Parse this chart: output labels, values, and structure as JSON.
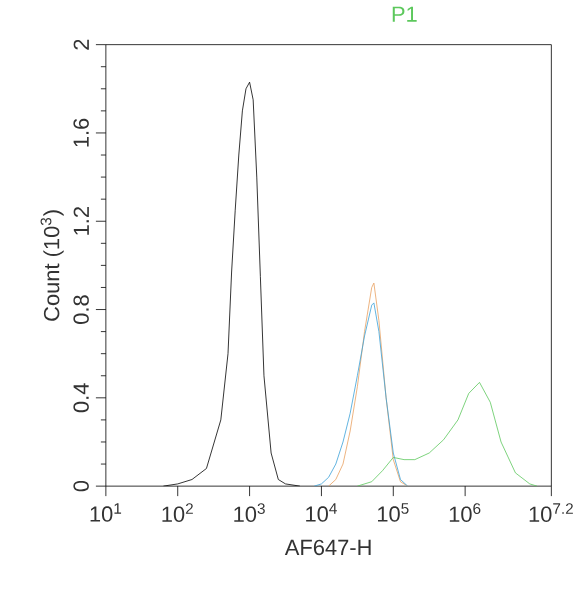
{
  "chart_data": {
    "type": "line",
    "title": "P1",
    "xlabel": "AF647-H",
    "ylabel": "Count (10$^{3}$)",
    "log": "x",
    "grid": false,
    "marker": "none",
    "line_style": "solid",
    "xlim": [
      10,
      15848932
    ],
    "ylim": [
      0,
      2
    ],
    "xticks": [
      {
        "value": 10,
        "label": "10$^{1}$"
      },
      {
        "value": 100,
        "label": "10$^{2}$"
      },
      {
        "value": 1000,
        "label": "10$^{3}$"
      },
      {
        "value": 10000,
        "label": "10$^{4}$"
      },
      {
        "value": 100000,
        "label": "10$^{5}$"
      },
      {
        "value": 1000000,
        "label": "10$^{6}$"
      },
      {
        "value": 15848932,
        "label": "10$^{7.2}$"
      }
    ],
    "yticks": [
      {
        "value": 0,
        "label": "0"
      },
      {
        "value": 0.4,
        "label": "0.4"
      },
      {
        "value": 0.8,
        "label": "0.8"
      },
      {
        "value": 1.2,
        "label": "1.2"
      },
      {
        "value": 1.6,
        "label": "1.6"
      },
      {
        "value": 2,
        "label": "2"
      }
    ],
    "series": [
      {
        "color": "#000000",
        "x": [
          63.1,
          100,
          158,
          251,
          398,
          501,
          562,
          631,
          708,
          794,
          891,
          1000,
          1122,
          1259,
          1413,
          1585,
          1995,
          2512,
          3162,
          5012
        ],
        "values": [
          0,
          0.01,
          0.03,
          0.08,
          0.3,
          0.6,
          0.97,
          1.25,
          1.5,
          1.7,
          1.8,
          1.83,
          1.75,
          1.4,
          0.95,
          0.5,
          0.15,
          0.03,
          0.01,
          0
        ]
      },
      {
        "color": "#e8a060",
        "x": [
          12589,
          15849,
          19953,
          25119,
          31623,
          39811,
          50119,
          53703,
          63096,
          79433,
          100000,
          125893,
          158489
        ],
        "values": [
          0,
          0.03,
          0.1,
          0.25,
          0.45,
          0.7,
          0.9,
          0.92,
          0.75,
          0.4,
          0.12,
          0.02,
          0
        ]
      },
      {
        "color": "#3aa0d8",
        "x": [
          7943,
          10000,
          12589,
          15849,
          19953,
          25119,
          31623,
          39811,
          50119,
          53703,
          63096,
          79433,
          100000,
          125893,
          158489
        ],
        "values": [
          0,
          0.01,
          0.04,
          0.1,
          0.2,
          0.33,
          0.5,
          0.68,
          0.82,
          0.83,
          0.7,
          0.4,
          0.15,
          0.03,
          0
        ]
      },
      {
        "color": "#5cc85c",
        "x": [
          31623,
          50119,
          70795,
          100000,
          141254,
          199526,
          316228,
          501187,
          794328,
          1122018,
          1584893,
          2238721,
          3162278,
          5011872,
          7943282,
          10000000
        ],
        "values": [
          0,
          0.02,
          0.07,
          0.13,
          0.12,
          0.12,
          0.15,
          0.21,
          0.3,
          0.42,
          0.47,
          0.38,
          0.2,
          0.06,
          0.01,
          0
        ]
      }
    ]
  }
}
